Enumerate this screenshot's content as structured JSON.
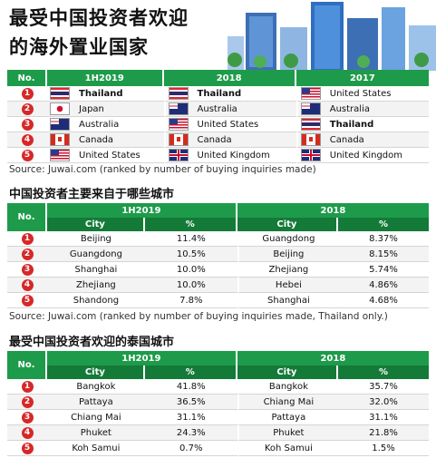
{
  "header": {
    "title_line1": "最受中国投资者欢迎",
    "title_line2": "的海外置业国家"
  },
  "countries_table": {
    "headers": [
      "No.",
      "1H2019",
      "2018",
      "2017"
    ],
    "rows": [
      {
        "no": "1",
        "c1": "Thailand",
        "f1": "th",
        "c2": "Thailand",
        "f2": "th",
        "c3": "United States",
        "f3": "us"
      },
      {
        "no": "2",
        "c1": "Japan",
        "f1": "jp",
        "c2": "Australia",
        "f2": "au",
        "c3": "Australia",
        "f3": "au"
      },
      {
        "no": "3",
        "c1": "Australia",
        "f1": "au",
        "c2": "United States",
        "f2": "us",
        "c3": "Thailand",
        "f3": "th"
      },
      {
        "no": "4",
        "c1": "Canada",
        "f1": "ca",
        "c2": "Canada",
        "f2": "ca",
        "c3": "Canada",
        "f3": "ca"
      },
      {
        "no": "5",
        "c1": "United States",
        "f1": "us",
        "c2": "United Kingdom",
        "f2": "uk",
        "c3": "United Kingdom",
        "f3": "uk"
      }
    ],
    "source": "Source: Juwai.com (ranked by number of buying inquiries made)"
  },
  "cities_section": {
    "title": "中国投资者主要来自于哪些城市",
    "headers": [
      "No.",
      "1H2019",
      "2018"
    ],
    "subheaders": [
      "City",
      "%",
      "City",
      "%"
    ],
    "rows": [
      {
        "no": "1",
        "a": "Beijing",
        "ap": "11.4%",
        "b": "Guangdong",
        "bp": "8.37%"
      },
      {
        "no": "2",
        "a": "Guangdong",
        "ap": "10.5%",
        "b": "Beijing",
        "bp": "8.15%"
      },
      {
        "no": "3",
        "a": "Shanghai",
        "ap": "10.0%",
        "b": "Zhejiang",
        "bp": "5.74%"
      },
      {
        "no": "4",
        "a": "Zhejiang",
        "ap": "10.0%",
        "b": "Hebei",
        "bp": "4.86%"
      },
      {
        "no": "5",
        "a": "Shandong",
        "ap": "7.8%",
        "b": "Shanghai",
        "bp": "4.68%"
      }
    ],
    "source": "Source: Juwai.com (ranked by number of buying inquiries made, Thailand only.)"
  },
  "thai_section": {
    "title": "最受中国投资者欢迎的泰国城市",
    "headers": [
      "No.",
      "1H2019",
      "2018"
    ],
    "subheaders": [
      "City",
      "%",
      "City",
      "%"
    ],
    "rows": [
      {
        "no": "1",
        "a": "Bangkok",
        "ap": "41.8%",
        "b": "Bangkok",
        "bp": "35.7%"
      },
      {
        "no": "2",
        "a": "Pattaya",
        "ap": "36.5%",
        "b": "Chiang Mai",
        "bp": "32.0%"
      },
      {
        "no": "3",
        "a": "Chiang Mai",
        "ap": "31.1%",
        "b": "Pattaya",
        "bp": "31.1%"
      },
      {
        "no": "4",
        "a": "Phuket",
        "ap": "24.3%",
        "b": "Phuket",
        "bp": "21.8%"
      },
      {
        "no": "5",
        "a": "Koh Samui",
        "ap": "0.7%",
        "b": "Koh Samui",
        "bp": "1.5%"
      }
    ]
  }
}
